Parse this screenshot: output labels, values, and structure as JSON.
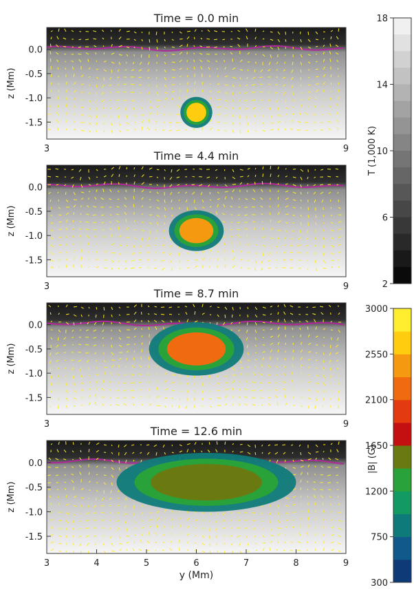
{
  "colors": {
    "arrow": "#ffee22",
    "photosphere": "#b0279a",
    "field_scale": [
      "#0e3a78",
      "#0f5a8a",
      "#0f7a7a",
      "#129a62",
      "#2aa23a",
      "#6a7a10",
      "#c41010",
      "#e33a10",
      "#f06a10",
      "#f59a10",
      "#ffcc10",
      "#ffee30"
    ]
  },
  "chart_data": [
    {
      "type": "heatmap",
      "title": "Time =   0.0 min",
      "xlabel": "",
      "ylabel": "z (Mm)",
      "xlim": [
        3,
        9
      ],
      "ylim": [
        -1.85,
        0.45
      ],
      "xticks": [
        "3",
        "9"
      ],
      "yticks": [
        "0.0",
        "-0.5",
        "-1.0",
        "-1.5"
      ],
      "flux_regions": [
        {
          "y": 6.0,
          "z": -1.3,
          "ry": 0.32,
          "rz": 0.32,
          "b": 2700
        }
      ]
    },
    {
      "type": "heatmap",
      "title": "Time =   4.4 min",
      "xlabel": "",
      "ylabel": "z (Mm)",
      "xlim": [
        3,
        9
      ],
      "ylim": [
        -1.85,
        0.45
      ],
      "xticks": [
        "3",
        "9"
      ],
      "yticks": [
        "0.0",
        "-0.5",
        "-1.0",
        "-1.5"
      ],
      "flux_regions": [
        {
          "y": 6.0,
          "z": -0.9,
          "ry": 0.55,
          "rz": 0.42,
          "b": 2400
        }
      ]
    },
    {
      "type": "heatmap",
      "title": "Time =   8.7 min",
      "xlabel": "",
      "ylabel": "z (Mm)",
      "xlim": [
        3,
        9
      ],
      "ylim": [
        -1.85,
        0.45
      ],
      "xticks": [
        "3",
        "9"
      ],
      "yticks": [
        "0.0",
        "-0.5",
        "-1.0",
        "-1.5"
      ],
      "flux_regions": [
        {
          "y": 6.0,
          "z": -0.5,
          "ry": 0.95,
          "rz": 0.55,
          "b": 2200
        }
      ]
    },
    {
      "type": "heatmap",
      "title": "Time = 12.6 min",
      "xlabel": "y (Mm)",
      "ylabel": "z (Mm)",
      "xlim": [
        3,
        9
      ],
      "ylim": [
        -1.85,
        0.45
      ],
      "xticks": [
        "3",
        "4",
        "5",
        "6",
        "7",
        "8",
        "9"
      ],
      "yticks": [
        "0.0",
        "-0.5",
        "-1.0",
        "-1.5"
      ],
      "flux_regions": [
        {
          "y": 6.2,
          "z": -0.4,
          "ry": 1.8,
          "rz": 0.6,
          "b": 1500
        }
      ]
    }
  ],
  "colorbars": [
    {
      "label": "T (1,000 K)",
      "ticks": [
        "18",
        "14",
        "10",
        "6",
        "2"
      ],
      "range": [
        2,
        18
      ]
    },
    {
      "label": "|B| (G)",
      "ticks": [
        "3000",
        "2550",
        "2100",
        "1650",
        "1200",
        "750",
        "300"
      ],
      "range": [
        300,
        3000
      ]
    }
  ]
}
